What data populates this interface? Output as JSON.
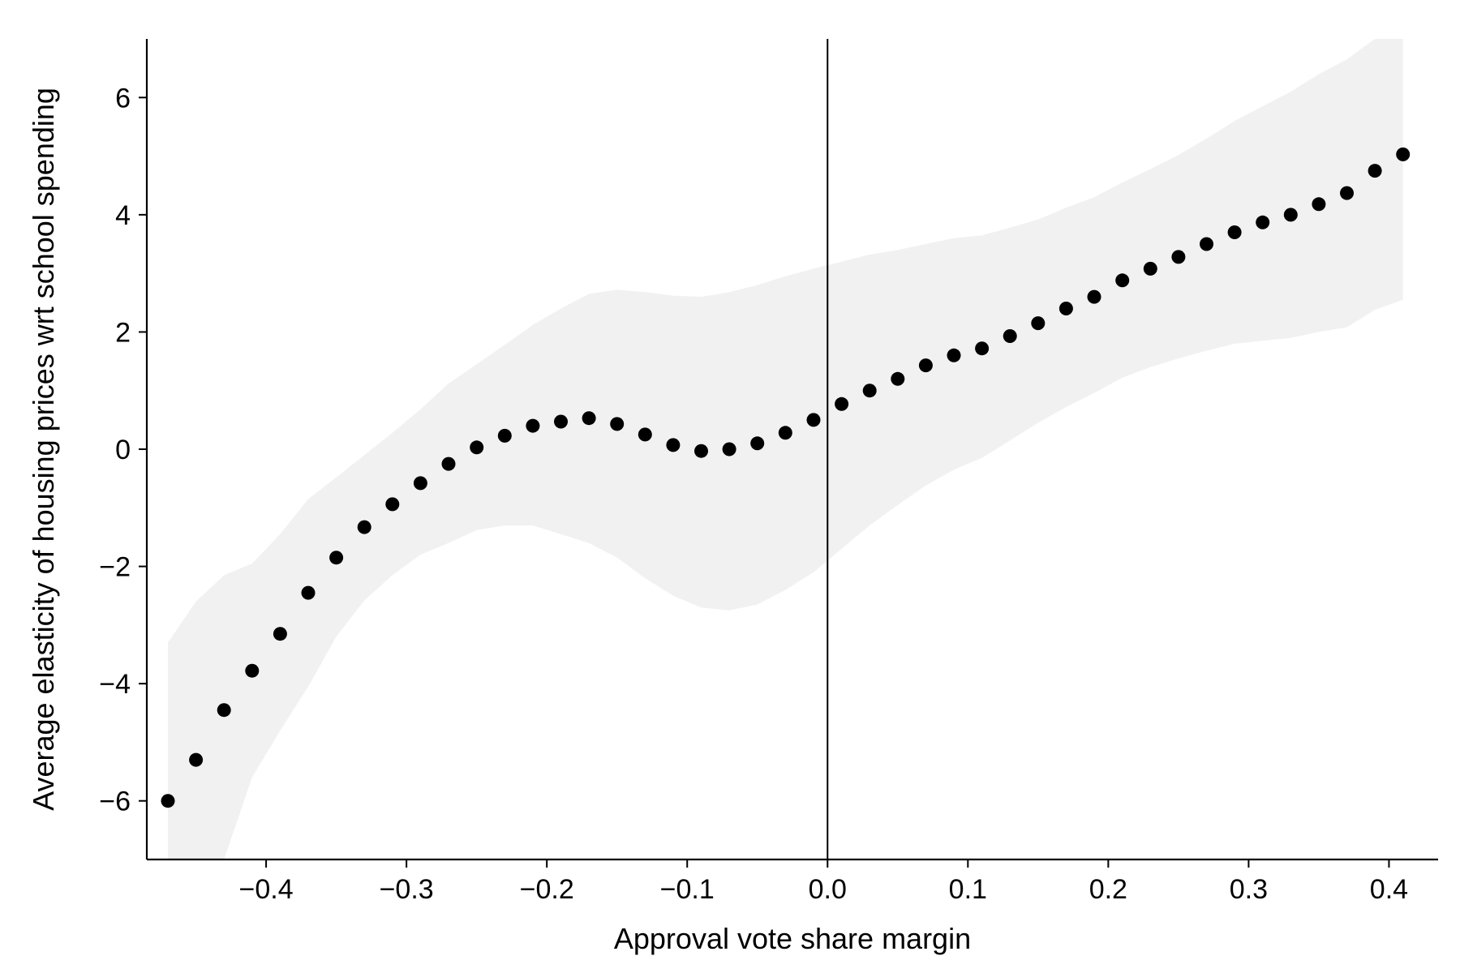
{
  "chart_data": {
    "type": "scatter",
    "xlabel": "Approval vote share margin",
    "ylabel": "Average elasticity of housing prices wrt school spending",
    "xlim": [
      -0.485,
      0.435
    ],
    "ylim": [
      -7.0,
      7.0
    ],
    "x_ticks": [
      -0.4,
      -0.3,
      -0.2,
      -0.1,
      0.0,
      0.1,
      0.2,
      0.3,
      0.4
    ],
    "x_tick_labels": [
      "−0.4",
      "−0.3",
      "−0.2",
      "−0.1",
      "0.0",
      "0.1",
      "0.2",
      "0.3",
      "0.4"
    ],
    "y_ticks": [
      -6,
      -4,
      -2,
      0,
      2,
      4,
      6
    ],
    "y_tick_labels": [
      "−6",
      "−4",
      "−2",
      "0",
      "2",
      "4",
      "6"
    ],
    "vertical_line_x": 0.0,
    "grid": false,
    "colors": {
      "points": "#000000",
      "band": "#f1f1f1",
      "axes": "#000000"
    },
    "series": [
      {
        "x": [
          -0.47,
          -0.45,
          -0.43,
          -0.41,
          -0.39,
          -0.37,
          -0.35,
          -0.33,
          -0.31,
          -0.29,
          -0.27,
          -0.25,
          -0.23,
          -0.21,
          -0.19,
          -0.17,
          -0.15,
          -0.13,
          -0.11,
          -0.09,
          -0.07,
          -0.05,
          -0.03,
          -0.01,
          0.01,
          0.03,
          0.05,
          0.07,
          0.09,
          0.11,
          0.13,
          0.15,
          0.17,
          0.19,
          0.21,
          0.23,
          0.25,
          0.27,
          0.29,
          0.31,
          0.33,
          0.35,
          0.37,
          0.39,
          0.41
        ],
        "y": [
          -6.0,
          -5.3,
          -4.45,
          -3.78,
          -3.15,
          -2.45,
          -1.85,
          -1.33,
          -0.94,
          -0.58,
          -0.25,
          0.03,
          0.23,
          0.4,
          0.47,
          0.53,
          0.43,
          0.25,
          0.07,
          -0.03,
          0.0,
          0.1,
          0.28,
          0.5,
          0.77,
          1.0,
          1.2,
          1.43,
          1.6,
          1.72,
          1.93,
          2.15,
          2.4,
          2.6,
          2.88,
          3.08,
          3.28,
          3.5,
          3.7,
          3.87,
          4.0,
          4.18,
          4.37,
          4.75,
          5.03
        ]
      }
    ],
    "confidence_band": {
      "x": [
        -0.47,
        -0.45,
        -0.43,
        -0.41,
        -0.39,
        -0.37,
        -0.35,
        -0.33,
        -0.31,
        -0.29,
        -0.27,
        -0.25,
        -0.23,
        -0.21,
        -0.19,
        -0.17,
        -0.15,
        -0.13,
        -0.11,
        -0.09,
        -0.07,
        -0.05,
        -0.03,
        -0.01,
        0.01,
        0.03,
        0.05,
        0.07,
        0.09,
        0.11,
        0.13,
        0.15,
        0.17,
        0.19,
        0.21,
        0.23,
        0.25,
        0.27,
        0.29,
        0.31,
        0.33,
        0.35,
        0.37,
        0.39,
        0.41
      ],
      "lower": [
        -7.0,
        -7.0,
        -7.0,
        -5.6,
        -4.8,
        -4.05,
        -3.2,
        -2.58,
        -2.15,
        -1.8,
        -1.6,
        -1.38,
        -1.3,
        -1.3,
        -1.45,
        -1.6,
        -1.85,
        -2.2,
        -2.5,
        -2.7,
        -2.75,
        -2.65,
        -2.4,
        -2.1,
        -1.7,
        -1.3,
        -0.95,
        -0.62,
        -0.35,
        -0.15,
        0.15,
        0.45,
        0.72,
        0.96,
        1.22,
        1.4,
        1.55,
        1.68,
        1.8,
        1.85,
        1.9,
        2.0,
        2.08,
        2.38,
        2.55
      ],
      "upper": [
        -3.3,
        -2.6,
        -2.15,
        -1.95,
        -1.45,
        -0.85,
        -0.48,
        -0.1,
        0.28,
        0.68,
        1.12,
        1.45,
        1.78,
        2.12,
        2.4,
        2.65,
        2.72,
        2.68,
        2.62,
        2.6,
        2.68,
        2.8,
        2.95,
        3.08,
        3.2,
        3.32,
        3.4,
        3.5,
        3.6,
        3.65,
        3.78,
        3.92,
        4.12,
        4.3,
        4.55,
        4.78,
        5.02,
        5.3,
        5.6,
        5.85,
        6.1,
        6.4,
        6.65,
        7.0,
        7.0
      ]
    }
  }
}
